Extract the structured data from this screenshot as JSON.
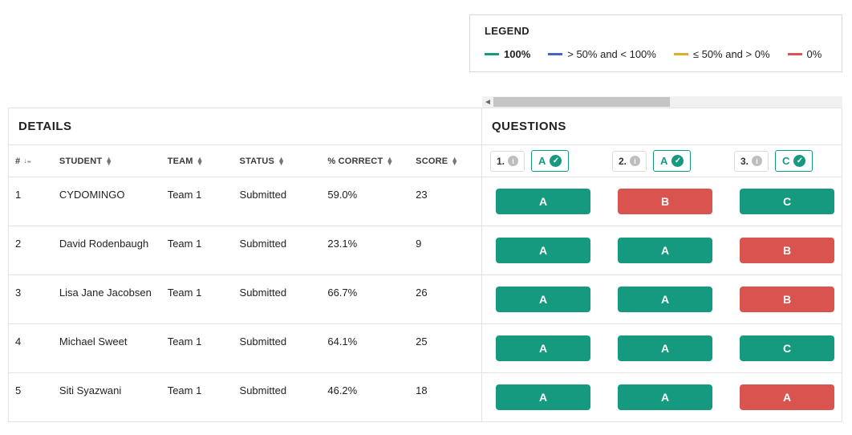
{
  "colors": {
    "green": "#159a80",
    "blue": "#4a5fd0",
    "amber": "#e3a92c",
    "red": "#d9534f",
    "grey_border": "#e3e3e3"
  },
  "legend": {
    "title": "LEGEND",
    "items": [
      {
        "color": "#159a80",
        "label": "100%",
        "bold": true
      },
      {
        "color": "#4a5fd0",
        "label": "> 50% and < 100%"
      },
      {
        "color": "#e3a92c",
        "label": "≤ 50% and > 0%"
      },
      {
        "color": "#d9534f",
        "label": "0%"
      }
    ]
  },
  "sections": {
    "details": "DETAILS",
    "questions": "QUESTIONS"
  },
  "columns": {
    "num": "#",
    "student": "STUDENT",
    "team": "TEAM",
    "status": "STATUS",
    "pct": "% CORRECT",
    "score": "SCORE"
  },
  "questions": [
    {
      "num": "1.",
      "correct": "A"
    },
    {
      "num": "2.",
      "correct": "A"
    },
    {
      "num": "3.",
      "correct": "C"
    }
  ],
  "rows": [
    {
      "num": "1",
      "student": "CYDOMINGO",
      "team": "Team 1",
      "status": "Submitted",
      "pct": "59.0%",
      "score": "23",
      "answers": [
        {
          "label": "A",
          "color": "#159a80"
        },
        {
          "label": "B",
          "color": "#d9534f"
        },
        {
          "label": "C",
          "color": "#159a80"
        }
      ]
    },
    {
      "num": "2",
      "student": "David Rodenbaugh",
      "team": "Team 1",
      "status": "Submitted",
      "pct": "23.1%",
      "score": "9",
      "answers": [
        {
          "label": "A",
          "color": "#159a80"
        },
        {
          "label": "A",
          "color": "#159a80"
        },
        {
          "label": "B",
          "color": "#d9534f"
        }
      ]
    },
    {
      "num": "3",
      "student": "Lisa Jane Jacobsen",
      "team": "Team 1",
      "status": "Submitted",
      "pct": "66.7%",
      "score": "26",
      "answers": [
        {
          "label": "A",
          "color": "#159a80"
        },
        {
          "label": "A",
          "color": "#159a80"
        },
        {
          "label": "B",
          "color": "#d9534f"
        }
      ]
    },
    {
      "num": "4",
      "student": "Michael Sweet",
      "team": "Team 1",
      "status": "Submitted",
      "pct": "64.1%",
      "score": "25",
      "answers": [
        {
          "label": "A",
          "color": "#159a80"
        },
        {
          "label": "A",
          "color": "#159a80"
        },
        {
          "label": "C",
          "color": "#159a80"
        }
      ]
    },
    {
      "num": "5",
      "student": "Siti Syazwani",
      "team": "Team 1",
      "status": "Submitted",
      "pct": "46.2%",
      "score": "18",
      "answers": [
        {
          "label": "A",
          "color": "#159a80"
        },
        {
          "label": "A",
          "color": "#159a80"
        },
        {
          "label": "A",
          "color": "#d9534f"
        }
      ]
    }
  ]
}
